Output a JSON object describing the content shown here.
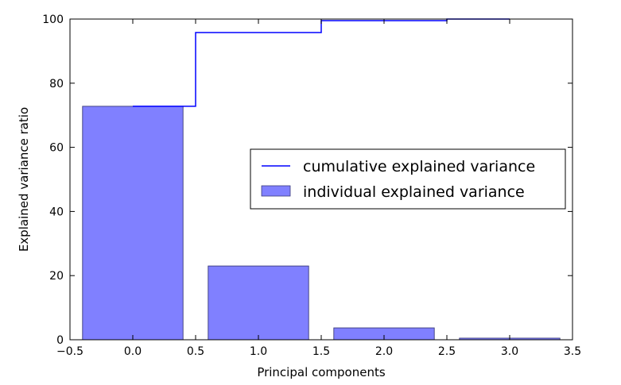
{
  "chart_data": {
    "type": "bar",
    "title": "",
    "xlabel": "Principal components",
    "ylabel": "Explained variance ratio",
    "xlim": [
      -0.5,
      3.5
    ],
    "ylim": [
      0,
      100
    ],
    "bar_width": 0.8,
    "xticks": [
      "−0.5",
      "0.0",
      "0.5",
      "1.0",
      "1.5",
      "2.0",
      "2.5",
      "3.0",
      "3.5"
    ],
    "xtick_values": [
      -0.5,
      0.0,
      0.5,
      1.0,
      1.5,
      2.0,
      2.5,
      3.0,
      3.5
    ],
    "yticks": [
      "0",
      "20",
      "40",
      "60",
      "80",
      "100"
    ],
    "ytick_values": [
      0,
      20,
      40,
      60,
      80,
      100
    ],
    "x": [
      0,
      1,
      2,
      3
    ],
    "series": [
      {
        "name": "individual explained variance",
        "kind": "bar",
        "color": "#8080ff",
        "values": [
          72.8,
          23.0,
          3.7,
          0.5
        ]
      },
      {
        "name": "cumulative explained variance",
        "kind": "step",
        "color": "#0000ff",
        "values": [
          72.8,
          95.8,
          99.5,
          100.0
        ]
      }
    ],
    "legend": {
      "placement": "center-right",
      "entries": [
        "cumulative explained variance",
        "individual explained variance"
      ]
    }
  }
}
